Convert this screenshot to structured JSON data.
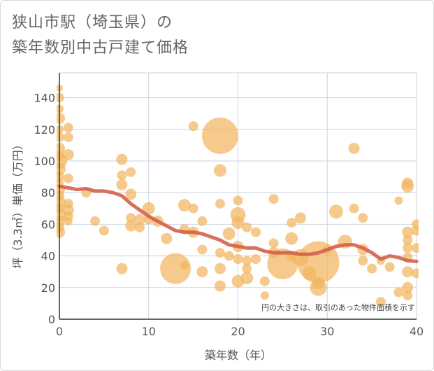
{
  "title_lines": [
    "狭山市駅（埼玉県）の",
    "築年数別中古戸建て価格"
  ],
  "colors": {
    "bubble": "#f2b560",
    "trend": "#d3604a",
    "grid": "#c8d3df",
    "axis": "#333333"
  },
  "chart_data": {
    "type": "scatter",
    "title": "狭山市駅（埼玉県）の築年数別中古戸建て価格",
    "xlabel": "築年数（年）",
    "ylabel": "坪（3.3㎡）単価（万円）",
    "xlim": [
      0,
      40
    ],
    "ylim": [
      0,
      150
    ],
    "xticks": [
      0,
      10,
      20,
      30,
      40
    ],
    "yticks": [
      0,
      20,
      40,
      60,
      80,
      100,
      120,
      140
    ],
    "note": "円の大きさは、取引のあった物件面積を示す",
    "points": [
      {
        "x": 0,
        "y": 146,
        "r": 5
      },
      {
        "x": 0,
        "y": 140,
        "r": 7
      },
      {
        "x": 0,
        "y": 133,
        "r": 6
      },
      {
        "x": 0,
        "y": 127,
        "r": 8
      },
      {
        "x": 0,
        "y": 120,
        "r": 6
      },
      {
        "x": 0,
        "y": 115,
        "r": 7
      },
      {
        "x": 0,
        "y": 108,
        "r": 8
      },
      {
        "x": 0,
        "y": 103,
        "r": 7
      },
      {
        "x": 0,
        "y": 100,
        "r": 11
      },
      {
        "x": 0,
        "y": 95,
        "r": 9
      },
      {
        "x": 0,
        "y": 90,
        "r": 7
      },
      {
        "x": 0,
        "y": 86,
        "r": 6
      },
      {
        "x": 0,
        "y": 82,
        "r": 8
      },
      {
        "x": 0,
        "y": 78,
        "r": 7
      },
      {
        "x": 0,
        "y": 74,
        "r": 9
      },
      {
        "x": 0,
        "y": 70,
        "r": 7
      },
      {
        "x": 0,
        "y": 66,
        "r": 10
      },
      {
        "x": 0,
        "y": 62,
        "r": 8
      },
      {
        "x": 0,
        "y": 58,
        "r": 7
      },
      {
        "x": 0,
        "y": 55,
        "r": 8
      },
      {
        "x": 1,
        "y": 121,
        "r": 7
      },
      {
        "x": 1,
        "y": 115,
        "r": 7
      },
      {
        "x": 1,
        "y": 104,
        "r": 8
      },
      {
        "x": 1,
        "y": 89,
        "r": 7
      },
      {
        "x": 1,
        "y": 73,
        "r": 7
      },
      {
        "x": 1,
        "y": 69,
        "r": 8
      },
      {
        "x": 1,
        "y": 65,
        "r": 7
      },
      {
        "x": 1,
        "y": 62,
        "r": 6
      },
      {
        "x": 3,
        "y": 80,
        "r": 7
      },
      {
        "x": 4,
        "y": 62,
        "r": 7
      },
      {
        "x": 5,
        "y": 56,
        "r": 7
      },
      {
        "x": 7,
        "y": 101,
        "r": 8
      },
      {
        "x": 7,
        "y": 91,
        "r": 7
      },
      {
        "x": 7,
        "y": 85,
        "r": 8
      },
      {
        "x": 7,
        "y": 32,
        "r": 8
      },
      {
        "x": 8,
        "y": 93,
        "r": 7
      },
      {
        "x": 8,
        "y": 79,
        "r": 8
      },
      {
        "x": 8,
        "y": 64,
        "r": 7
      },
      {
        "x": 8,
        "y": 59,
        "r": 8
      },
      {
        "x": 9,
        "y": 63,
        "r": 8
      },
      {
        "x": 9,
        "y": 58,
        "r": 7
      },
      {
        "x": 10,
        "y": 70,
        "r": 9
      },
      {
        "x": 10,
        "y": 63,
        "r": 7
      },
      {
        "x": 11,
        "y": 62,
        "r": 8
      },
      {
        "x": 12,
        "y": 51,
        "r": 8
      },
      {
        "x": 13,
        "y": 32,
        "r": 22
      },
      {
        "x": 14,
        "y": 72,
        "r": 9
      },
      {
        "x": 14,
        "y": 57,
        "r": 7
      },
      {
        "x": 14,
        "y": 34,
        "r": 6
      },
      {
        "x": 15,
        "y": 122,
        "r": 7
      },
      {
        "x": 15,
        "y": 70,
        "r": 7
      },
      {
        "x": 15,
        "y": 55,
        "r": 8
      },
      {
        "x": 16,
        "y": 62,
        "r": 7
      },
      {
        "x": 16,
        "y": 44,
        "r": 7
      },
      {
        "x": 16,
        "y": 30,
        "r": 8
      },
      {
        "x": 18,
        "y": 116,
        "r": 26
      },
      {
        "x": 18,
        "y": 94,
        "r": 9
      },
      {
        "x": 18,
        "y": 73,
        "r": 7
      },
      {
        "x": 18,
        "y": 42,
        "r": 7
      },
      {
        "x": 18,
        "y": 32,
        "r": 8
      },
      {
        "x": 18,
        "y": 21,
        "r": 8
      },
      {
        "x": 19,
        "y": 54,
        "r": 9
      },
      {
        "x": 19,
        "y": 40,
        "r": 7
      },
      {
        "x": 20,
        "y": 75,
        "r": 7
      },
      {
        "x": 20,
        "y": 66,
        "r": 11
      },
      {
        "x": 20,
        "y": 61,
        "r": 9
      },
      {
        "x": 20,
        "y": 46,
        "r": 8
      },
      {
        "x": 20,
        "y": 38,
        "r": 7
      },
      {
        "x": 20,
        "y": 24,
        "r": 9
      },
      {
        "x": 21,
        "y": 58,
        "r": 7
      },
      {
        "x": 21,
        "y": 37,
        "r": 7
      },
      {
        "x": 21,
        "y": 32,
        "r": 7
      },
      {
        "x": 21,
        "y": 26,
        "r": 9
      },
      {
        "x": 22,
        "y": 55,
        "r": 7
      },
      {
        "x": 22,
        "y": 38,
        "r": 7
      },
      {
        "x": 23,
        "y": 24,
        "r": 7
      },
      {
        "x": 23,
        "y": 15,
        "r": 6
      },
      {
        "x": 24,
        "y": 76,
        "r": 7
      },
      {
        "x": 24,
        "y": 48,
        "r": 7
      },
      {
        "x": 24,
        "y": 42,
        "r": 8
      },
      {
        "x": 25,
        "y": 35,
        "r": 22
      },
      {
        "x": 26,
        "y": 61,
        "r": 7
      },
      {
        "x": 26,
        "y": 51,
        "r": 9
      },
      {
        "x": 26,
        "y": 40,
        "r": 7
      },
      {
        "x": 27,
        "y": 64,
        "r": 8
      },
      {
        "x": 27,
        "y": 39,
        "r": 12
      },
      {
        "x": 28,
        "y": 29,
        "r": 10
      },
      {
        "x": 29,
        "y": 36,
        "r": 30
      },
      {
        "x": 29,
        "y": 20,
        "r": 12
      },
      {
        "x": 29,
        "y": 23,
        "r": 9
      },
      {
        "x": 30,
        "y": 44,
        "r": 7
      },
      {
        "x": 31,
        "y": 68,
        "r": 10
      },
      {
        "x": 32,
        "y": 49,
        "r": 10
      },
      {
        "x": 33,
        "y": 108,
        "r": 8
      },
      {
        "x": 33,
        "y": 70,
        "r": 7
      },
      {
        "x": 34,
        "y": 64,
        "r": 7
      },
      {
        "x": 34,
        "y": 44,
        "r": 8
      },
      {
        "x": 34,
        "y": 37,
        "r": 7
      },
      {
        "x": 35,
        "y": 32,
        "r": 7
      },
      {
        "x": 36,
        "y": 11,
        "r": 7
      },
      {
        "x": 36,
        "y": 37,
        "r": 6
      },
      {
        "x": 37,
        "y": 33,
        "r": 7
      },
      {
        "x": 38,
        "y": 75,
        "r": 6
      },
      {
        "x": 38,
        "y": 17,
        "r": 7
      },
      {
        "x": 39,
        "y": 86,
        "r": 8
      },
      {
        "x": 39,
        "y": 84,
        "r": 9
      },
      {
        "x": 39,
        "y": 55,
        "r": 8
      },
      {
        "x": 39,
        "y": 50,
        "r": 7
      },
      {
        "x": 39,
        "y": 45,
        "r": 7
      },
      {
        "x": 39,
        "y": 39,
        "r": 7
      },
      {
        "x": 39,
        "y": 30,
        "r": 8
      },
      {
        "x": 39,
        "y": 20,
        "r": 8
      },
      {
        "x": 39,
        "y": 15,
        "r": 7
      },
      {
        "x": 40,
        "y": 60,
        "r": 7
      },
      {
        "x": 40,
        "y": 56,
        "r": 7
      },
      {
        "x": 40,
        "y": 45,
        "r": 7
      },
      {
        "x": 40,
        "y": 29,
        "r": 7
      }
    ],
    "trend": {
      "x": [
        0,
        1,
        2,
        3,
        4,
        5,
        6,
        7,
        8,
        9,
        10,
        11,
        12,
        13,
        14,
        15,
        16,
        17,
        18,
        19,
        20,
        21,
        22,
        23,
        24,
        25,
        26,
        27,
        28,
        29,
        30,
        31,
        32,
        33,
        34,
        35,
        36,
        37,
        38,
        39,
        40
      ],
      "y": [
        84,
        83,
        82,
        82.5,
        81,
        81,
        80,
        78,
        73,
        69,
        65,
        62,
        59,
        56,
        55,
        55,
        54,
        52,
        50,
        47,
        46,
        45,
        45,
        43,
        42,
        42,
        42,
        41,
        41,
        42,
        44,
        46,
        47,
        47,
        45,
        42,
        38,
        40,
        39,
        37,
        36.5
      ]
    }
  }
}
